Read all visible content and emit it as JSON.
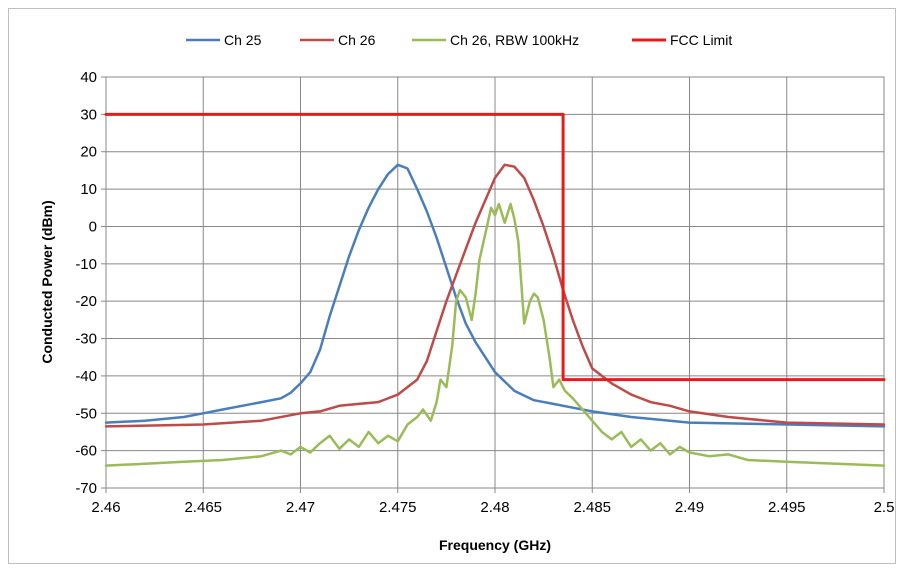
{
  "chart_data": {
    "type": "line",
    "xlabel": "Frequency (GHz)",
    "ylabel": "Conducted Power (dBm)",
    "xlim": [
      2.46,
      2.5
    ],
    "ylim": [
      -70,
      40
    ],
    "x_ticks": [
      "2.46",
      "2.465",
      "2.47",
      "2.475",
      "2.48",
      "2.485",
      "2.49",
      "2.495",
      "2.5"
    ],
    "y_ticks": [
      "40",
      "30",
      "20",
      "10",
      "0",
      "-10",
      "-20",
      "-30",
      "-40",
      "-50",
      "-60",
      "-70"
    ],
    "grid": true,
    "legend_position": "top",
    "series": [
      {
        "name": "Ch 25",
        "color": "#4a7ebb",
        "points": [
          [
            2.46,
            -52.5
          ],
          [
            2.462,
            -52
          ],
          [
            2.464,
            -51
          ],
          [
            2.465,
            -50
          ],
          [
            2.466,
            -49
          ],
          [
            2.467,
            -48
          ],
          [
            2.468,
            -47
          ],
          [
            2.469,
            -46
          ],
          [
            2.4695,
            -44.5
          ],
          [
            2.47,
            -42
          ],
          [
            2.4705,
            -39
          ],
          [
            2.471,
            -33
          ],
          [
            2.4715,
            -24
          ],
          [
            2.472,
            -16
          ],
          [
            2.4725,
            -8
          ],
          [
            2.473,
            -1
          ],
          [
            2.4735,
            5
          ],
          [
            2.474,
            10
          ],
          [
            2.4745,
            14
          ],
          [
            2.475,
            16.5
          ],
          [
            2.4755,
            15.5
          ],
          [
            2.476,
            10
          ],
          [
            2.4765,
            4
          ],
          [
            2.477,
            -3
          ],
          [
            2.4775,
            -11
          ],
          [
            2.478,
            -19
          ],
          [
            2.4785,
            -26
          ],
          [
            2.479,
            -31
          ],
          [
            2.4795,
            -35
          ],
          [
            2.48,
            -39
          ],
          [
            2.481,
            -44
          ],
          [
            2.482,
            -46.5
          ],
          [
            2.483,
            -47.5
          ],
          [
            2.484,
            -48.5
          ],
          [
            2.485,
            -49.5
          ],
          [
            2.487,
            -51
          ],
          [
            2.49,
            -52.5
          ],
          [
            2.495,
            -53
          ],
          [
            2.5,
            -53.5
          ]
        ]
      },
      {
        "name": "Ch 26",
        "color": "#be4b48",
        "points": [
          [
            2.46,
            -53.5
          ],
          [
            2.465,
            -53
          ],
          [
            2.468,
            -52
          ],
          [
            2.47,
            -50
          ],
          [
            2.471,
            -49.5
          ],
          [
            2.472,
            -48
          ],
          [
            2.473,
            -47.5
          ],
          [
            2.474,
            -47
          ],
          [
            2.475,
            -45
          ],
          [
            2.4755,
            -43
          ],
          [
            2.476,
            -41
          ],
          [
            2.4765,
            -36
          ],
          [
            2.477,
            -28
          ],
          [
            2.4775,
            -20
          ],
          [
            2.478,
            -13
          ],
          [
            2.4785,
            -6
          ],
          [
            2.479,
            1
          ],
          [
            2.4795,
            7
          ],
          [
            2.48,
            13
          ],
          [
            2.4805,
            16.5
          ],
          [
            2.481,
            16
          ],
          [
            2.4815,
            13
          ],
          [
            2.482,
            7
          ],
          [
            2.4825,
            0
          ],
          [
            2.483,
            -8
          ],
          [
            2.4835,
            -17
          ],
          [
            2.484,
            -25
          ],
          [
            2.4845,
            -32
          ],
          [
            2.485,
            -38
          ],
          [
            2.486,
            -42
          ],
          [
            2.487,
            -45
          ],
          [
            2.488,
            -47
          ],
          [
            2.489,
            -48
          ],
          [
            2.49,
            -49.5
          ],
          [
            2.492,
            -51
          ],
          [
            2.495,
            -52.5
          ],
          [
            2.5,
            -53
          ]
        ]
      },
      {
        "name": "Ch 26, RBW 100kHz",
        "color": "#9bbb59",
        "points": [
          [
            2.46,
            -64
          ],
          [
            2.462,
            -63.5
          ],
          [
            2.464,
            -63
          ],
          [
            2.466,
            -62.5
          ],
          [
            2.468,
            -61.5
          ],
          [
            2.469,
            -60
          ],
          [
            2.4695,
            -61
          ],
          [
            2.47,
            -59
          ],
          [
            2.4705,
            -60.5
          ],
          [
            2.471,
            -58
          ],
          [
            2.4715,
            -56
          ],
          [
            2.472,
            -59.5
          ],
          [
            2.4725,
            -57
          ],
          [
            2.473,
            -59
          ],
          [
            2.4735,
            -55
          ],
          [
            2.474,
            -58
          ],
          [
            2.4745,
            -56
          ],
          [
            2.475,
            -57.5
          ],
          [
            2.4755,
            -53
          ],
          [
            2.476,
            -51
          ],
          [
            2.4763,
            -49
          ],
          [
            2.4767,
            -52
          ],
          [
            2.477,
            -47
          ],
          [
            2.4772,
            -41
          ],
          [
            2.4775,
            -43
          ],
          [
            2.4778,
            -32
          ],
          [
            2.478,
            -20
          ],
          [
            2.4782,
            -17
          ],
          [
            2.4785,
            -19
          ],
          [
            2.4788,
            -25
          ],
          [
            2.479,
            -18
          ],
          [
            2.4792,
            -9
          ],
          [
            2.4795,
            -2
          ],
          [
            2.4798,
            5
          ],
          [
            2.48,
            3
          ],
          [
            2.4802,
            6
          ],
          [
            2.4805,
            1
          ],
          [
            2.4808,
            6
          ],
          [
            2.481,
            2
          ],
          [
            2.4812,
            -4
          ],
          [
            2.4815,
            -26
          ],
          [
            2.4818,
            -20
          ],
          [
            2.482,
            -18
          ],
          [
            2.4822,
            -19
          ],
          [
            2.4825,
            -25
          ],
          [
            2.4828,
            -35
          ],
          [
            2.483,
            -43
          ],
          [
            2.4833,
            -41
          ],
          [
            2.4836,
            -44
          ],
          [
            2.484,
            -46
          ],
          [
            2.4845,
            -49
          ],
          [
            2.485,
            -52
          ],
          [
            2.4855,
            -55
          ],
          [
            2.486,
            -57
          ],
          [
            2.4865,
            -55
          ],
          [
            2.487,
            -59
          ],
          [
            2.4875,
            -57
          ],
          [
            2.488,
            -60
          ],
          [
            2.4885,
            -58
          ],
          [
            2.489,
            -61
          ],
          [
            2.4895,
            -59
          ],
          [
            2.49,
            -60.5
          ],
          [
            2.491,
            -61.5
          ],
          [
            2.492,
            -61
          ],
          [
            2.493,
            -62.5
          ],
          [
            2.495,
            -63
          ],
          [
            2.5,
            -64
          ]
        ]
      },
      {
        "name": "FCC Limit",
        "color": "#e81b1b",
        "points": [
          [
            2.46,
            30
          ],
          [
            2.4835,
            30
          ],
          [
            2.4835,
            -41
          ],
          [
            2.5,
            -41
          ]
        ]
      }
    ]
  }
}
